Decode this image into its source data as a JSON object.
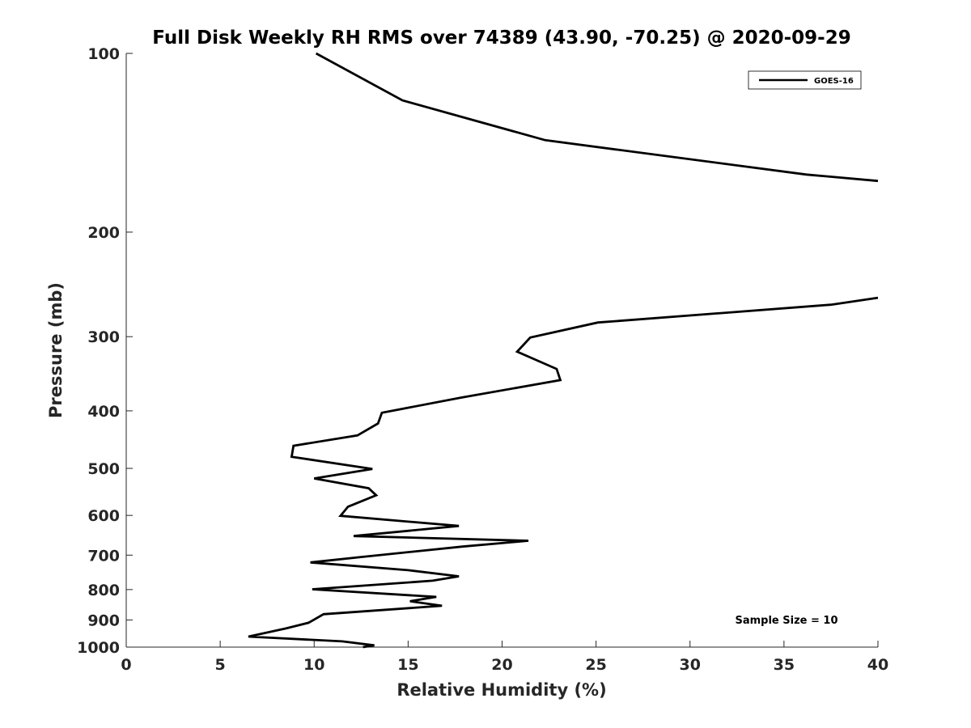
{
  "chart_data": {
    "type": "line",
    "title": "Full Disk Weekly RH RMS over 74389 (43.90, -70.25) @ 2020-09-29",
    "xlabel": "Relative Humidity (%)",
    "ylabel": "Pressure (mb)",
    "xlim": [
      0,
      40
    ],
    "ylim": [
      100,
      1000
    ],
    "y_scale": "log",
    "y_reversed": true,
    "x_ticks": [
      "0",
      "5",
      "10",
      "15",
      "20",
      "25",
      "30",
      "35",
      "40"
    ],
    "y_ticks": [
      "100",
      "200",
      "300",
      "400",
      "500",
      "600",
      "700",
      "800",
      "900",
      "1000"
    ],
    "grid": false,
    "legend": {
      "position": "top-right",
      "entries": [
        "GOES-16"
      ]
    },
    "annotation": "Sample Size = 10",
    "series": [
      {
        "name": "GOES-16",
        "color": "#000000",
        "segments": [
          [
            {
              "x": 10.1,
              "y": 100
            },
            {
              "x": 14.7,
              "y": 120
            },
            {
              "x": 22.3,
              "y": 140
            },
            {
              "x": 36.2,
              "y": 160
            },
            {
              "x": 40.0,
              "y": 164
            }
          ],
          [
            {
              "x": 40.0,
              "y": 258
            },
            {
              "x": 37.5,
              "y": 265
            },
            {
              "x": 25.1,
              "y": 284
            },
            {
              "x": 21.5,
              "y": 301
            },
            {
              "x": 20.8,
              "y": 318
            },
            {
              "x": 22.9,
              "y": 340
            },
            {
              "x": 23.1,
              "y": 355
            },
            {
              "x": 17.8,
              "y": 380
            },
            {
              "x": 13.6,
              "y": 403
            },
            {
              "x": 13.4,
              "y": 420
            },
            {
              "x": 12.3,
              "y": 440
            },
            {
              "x": 8.9,
              "y": 458
            },
            {
              "x": 8.8,
              "y": 478
            },
            {
              "x": 13.1,
              "y": 501
            },
            {
              "x": 10.0,
              "y": 520
            },
            {
              "x": 12.9,
              "y": 540
            },
            {
              "x": 13.3,
              "y": 555
            },
            {
              "x": 11.8,
              "y": 580
            },
            {
              "x": 11.4,
              "y": 601
            },
            {
              "x": 17.7,
              "y": 625
            },
            {
              "x": 12.1,
              "y": 650
            },
            {
              "x": 21.4,
              "y": 662
            },
            {
              "x": 17.9,
              "y": 677
            },
            {
              "x": 12.5,
              "y": 705
            },
            {
              "x": 9.8,
              "y": 720
            },
            {
              "x": 15.0,
              "y": 742
            },
            {
              "x": 17.7,
              "y": 760
            },
            {
              "x": 16.3,
              "y": 773
            },
            {
              "x": 9.9,
              "y": 799
            },
            {
              "x": 16.5,
              "y": 823
            },
            {
              "x": 15.1,
              "y": 837
            },
            {
              "x": 16.8,
              "y": 852
            },
            {
              "x": 10.5,
              "y": 880
            },
            {
              "x": 9.7,
              "y": 910
            },
            {
              "x": 8.5,
              "y": 930
            },
            {
              "x": 6.5,
              "y": 960
            },
            {
              "x": 11.5,
              "y": 978
            },
            {
              "x": 13.2,
              "y": 993
            },
            {
              "x": 12.6,
              "y": 1000
            }
          ]
        ]
      }
    ]
  }
}
